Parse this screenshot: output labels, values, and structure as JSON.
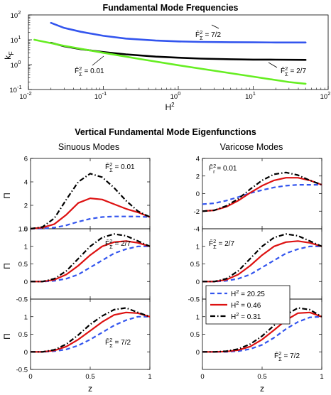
{
  "figure": {
    "top_title": "Fundamental Mode Frequencies",
    "section_title": "Vertical Fundamental Mode Eigenfunctions",
    "left_column_title": "Sinuous Modes",
    "right_column_title": "Varicose Modes"
  },
  "chart_data": [
    {
      "id": "frequencies",
      "type": "line",
      "title": "Fundamental Mode Frequencies",
      "xlabel": "H²",
      "ylabel": "k_F",
      "xscale": "log",
      "yscale": "log",
      "xlim": [
        0.01,
        100
      ],
      "ylim": [
        0.1,
        100
      ],
      "xticks": [
        0.01,
        0.1,
        1,
        10,
        100
      ],
      "xtick_labels": [
        [
          "10",
          "-2"
        ],
        [
          "10",
          "-1"
        ],
        [
          "10",
          "0"
        ],
        [
          "10",
          "1"
        ],
        [
          "10",
          "2"
        ]
      ],
      "yticks": [
        0.1,
        1,
        10,
        100
      ],
      "ytick_labels": [
        [
          "10",
          "-1"
        ],
        [
          "10",
          "0"
        ],
        [
          "10",
          "1"
        ],
        [
          "10",
          "2"
        ]
      ],
      "series": [
        {
          "color": "#3355ee",
          "x": [
            0.02,
            0.03,
            0.05,
            0.1,
            0.2,
            0.5,
            1,
            2,
            5,
            10,
            20,
            50
          ],
          "y": [
            48,
            30,
            21,
            14.5,
            11.2,
            9.3,
            8.6,
            8.2,
            8.0,
            7.9,
            7.8,
            7.8
          ]
        },
        {
          "color": "#000000",
          "x": [
            0.02,
            0.03,
            0.05,
            0.1,
            0.2,
            0.5,
            1,
            2,
            5,
            10,
            20,
            50
          ],
          "y": [
            7.6,
            5.5,
            4.2,
            3.2,
            2.6,
            2.1,
            1.9,
            1.75,
            1.65,
            1.6,
            1.58,
            1.55
          ]
        },
        {
          "color": "#66ee22",
          "x": [
            0.012,
            0.03,
            0.1,
            0.3,
            1,
            3,
            10,
            30,
            50
          ],
          "y": [
            10,
            5.7,
            3.0,
            1.7,
            0.95,
            0.57,
            0.33,
            0.2,
            0.17
          ]
        }
      ],
      "annotations": [
        {
          "base": "F̄",
          "sup": "2",
          "sub": "Σ",
          "value": " = 7/2"
        },
        {
          "base": "F̄",
          "sup": "2",
          "sub": "Σ",
          "value": " = 0.01"
        },
        {
          "base": "F̄",
          "sup": "2",
          "sub": "Σ",
          "value": " = 2/7"
        }
      ]
    },
    {
      "id": "sinuous-1",
      "type": "line",
      "ylabel": "Π",
      "xlim": [
        0,
        1
      ],
      "ylim": [
        0,
        6
      ],
      "yticks": [
        0,
        2,
        4,
        6
      ],
      "ytick_labels": [
        "0",
        "2",
        "4",
        "6"
      ],
      "annotation": {
        "base": "F̄",
        "sup": "2",
        "sub": "Σ",
        "value": " = 0.01"
      },
      "x": [
        0,
        0.1,
        0.2,
        0.3,
        0.4,
        0.5,
        0.6,
        0.7,
        0.8,
        0.9,
        1.0
      ],
      "series": [
        {
          "color": "#3355ee",
          "style": "dash",
          "y": [
            0,
            0.02,
            0.1,
            0.3,
            0.6,
            0.85,
            1.0,
            1.05,
            1.05,
            1.04,
            1.0
          ]
        },
        {
          "color": "#dd1111",
          "style": "solid",
          "y": [
            0,
            0.1,
            0.4,
            1.2,
            2.2,
            2.6,
            2.5,
            2.1,
            1.7,
            1.4,
            1.0
          ]
        },
        {
          "color": "#000000",
          "style": "dashdot",
          "y": [
            0,
            0.15,
            0.9,
            2.5,
            4.0,
            4.7,
            4.4,
            3.5,
            2.4,
            1.5,
            1.0
          ]
        }
      ]
    },
    {
      "id": "sinuous-2",
      "type": "line",
      "ylabel": "Π",
      "xlim": [
        0,
        1
      ],
      "ylim": [
        -0.5,
        1.5
      ],
      "yticks": [
        -0.5,
        0,
        0.5,
        1,
        1.5
      ],
      "ytick_labels": [
        "-0.5",
        "0",
        "0.5",
        "1",
        "1.5"
      ],
      "annotation": {
        "base": "F̄",
        "sup": "2",
        "sub": "Σ",
        "value": " = 2/7"
      },
      "x": [
        0,
        0.1,
        0.2,
        0.3,
        0.4,
        0.5,
        0.6,
        0.7,
        0.8,
        0.9,
        1.0
      ],
      "series": [
        {
          "color": "#3355ee",
          "style": "dash",
          "y": [
            0,
            0.0,
            0.02,
            0.08,
            0.2,
            0.4,
            0.6,
            0.8,
            0.92,
            1.0,
            1.0
          ]
        },
        {
          "color": "#dd1111",
          "style": "solid",
          "y": [
            0,
            0.0,
            0.05,
            0.2,
            0.45,
            0.75,
            1.0,
            1.12,
            1.15,
            1.1,
            1.0
          ]
        },
        {
          "color": "#000000",
          "style": "dashdot",
          "y": [
            0,
            0.0,
            0.08,
            0.3,
            0.65,
            1.0,
            1.25,
            1.35,
            1.3,
            1.15,
            1.0
          ]
        }
      ]
    },
    {
      "id": "sinuous-3",
      "type": "line",
      "ylabel": "Π",
      "xlabel": "z",
      "xlim": [
        0,
        1
      ],
      "ylim": [
        -0.5,
        1.5
      ],
      "yticks": [
        -0.5,
        0,
        0.5,
        1
      ],
      "ytick_labels": [
        "-0.5",
        "0",
        "0.5",
        "1"
      ],
      "xticks": [
        0,
        0.5,
        1
      ],
      "xtick_labels": [
        "0",
        "0.5",
        "1"
      ],
      "annotation": {
        "base": "F̄",
        "sup": "2",
        "sub": "Σ",
        "value": " = 7/2"
      },
      "x": [
        0,
        0.1,
        0.2,
        0.3,
        0.4,
        0.5,
        0.6,
        0.7,
        0.8,
        0.9,
        1.0
      ],
      "series": [
        {
          "color": "#3355ee",
          "style": "dash",
          "y": [
            0,
            0.0,
            0.02,
            0.07,
            0.18,
            0.35,
            0.55,
            0.75,
            0.9,
            1.0,
            1.0
          ]
        },
        {
          "color": "#dd1111",
          "style": "solid",
          "y": [
            0,
            0.0,
            0.04,
            0.15,
            0.35,
            0.6,
            0.85,
            1.05,
            1.12,
            1.1,
            1.0
          ]
        },
        {
          "color": "#000000",
          "style": "dashdot",
          "y": [
            0,
            0.0,
            0.06,
            0.22,
            0.48,
            0.78,
            1.02,
            1.2,
            1.25,
            1.12,
            1.0
          ]
        }
      ]
    },
    {
      "id": "varicose-1",
      "type": "line",
      "xlim": [
        0,
        1
      ],
      "ylim": [
        -4,
        4
      ],
      "yticks": [
        -4,
        -2,
        0,
        2,
        4
      ],
      "ytick_labels": [
        "-4",
        "-2",
        "0",
        "2",
        "4"
      ],
      "annotation": {
        "base": "F̄",
        "sup": "2",
        "sub": "r",
        "value": " = 0.01"
      },
      "x": [
        0,
        0.1,
        0.2,
        0.3,
        0.4,
        0.5,
        0.6,
        0.7,
        0.8,
        0.9,
        1.0
      ],
      "series": [
        {
          "color": "#3355ee",
          "style": "dash",
          "y": [
            -1.2,
            -1.1,
            -0.8,
            -0.4,
            0.05,
            0.4,
            0.7,
            0.9,
            1.0,
            1.0,
            1.0
          ]
        },
        {
          "color": "#dd1111",
          "style": "solid",
          "y": [
            -2.0,
            -1.9,
            -1.5,
            -0.8,
            0.1,
            0.9,
            1.5,
            1.8,
            1.8,
            1.5,
            1.0
          ]
        },
        {
          "color": "#000000",
          "style": "dashdot",
          "y": [
            -2.0,
            -1.9,
            -1.4,
            -0.6,
            0.5,
            1.5,
            2.2,
            2.4,
            2.1,
            1.5,
            1.0
          ]
        }
      ]
    },
    {
      "id": "varicose-2",
      "type": "line",
      "xlim": [
        0,
        1
      ],
      "ylim": [
        -0.5,
        1.5
      ],
      "yticks": [
        -0.5,
        0,
        0.5,
        1
      ],
      "ytick_labels": [
        "-0.5",
        "0",
        "0.5",
        "1"
      ],
      "annotation": {
        "base": "F̄",
        "sup": "2",
        "sub": "Σ",
        "value": " = 2/7"
      },
      "x": [
        0,
        0.1,
        0.2,
        0.3,
        0.4,
        0.5,
        0.6,
        0.7,
        0.8,
        0.9,
        1.0
      ],
      "series": [
        {
          "color": "#3355ee",
          "style": "dash",
          "y": [
            0,
            0.0,
            0.02,
            0.08,
            0.2,
            0.4,
            0.6,
            0.8,
            0.92,
            1.0,
            1.0
          ]
        },
        {
          "color": "#dd1111",
          "style": "solid",
          "y": [
            0,
            0.0,
            0.05,
            0.2,
            0.45,
            0.75,
            1.0,
            1.12,
            1.15,
            1.1,
            1.0
          ]
        },
        {
          "color": "#000000",
          "style": "dashdot",
          "y": [
            0,
            0.0,
            0.08,
            0.3,
            0.65,
            1.0,
            1.25,
            1.35,
            1.3,
            1.15,
            1.0
          ]
        }
      ]
    },
    {
      "id": "varicose-3",
      "type": "line",
      "xlabel": "z",
      "xlim": [
        0,
        1
      ],
      "ylim": [
        -0.5,
        1.5
      ],
      "yticks": [
        0,
        0.5,
        1
      ],
      "ytick_labels": [
        "0",
        "0.5",
        "1"
      ],
      "xticks": [
        0,
        0.5,
        1
      ],
      "xtick_labels": [
        "0",
        "0.5",
        "1"
      ],
      "annotation": {
        "base": "F̄",
        "sup": "2",
        "sub": "Σ",
        "value": " = 7/2"
      },
      "x": [
        0,
        0.1,
        0.2,
        0.3,
        0.4,
        0.5,
        0.6,
        0.7,
        0.8,
        0.9,
        1.0
      ],
      "series": [
        {
          "color": "#3355ee",
          "style": "dash",
          "y": [
            0,
            0.0,
            0.0,
            0.02,
            0.08,
            0.2,
            0.4,
            0.65,
            0.85,
            0.98,
            1.0
          ]
        },
        {
          "color": "#dd1111",
          "style": "solid",
          "y": [
            0,
            0.0,
            0.01,
            0.05,
            0.15,
            0.35,
            0.62,
            0.9,
            1.1,
            1.12,
            1.0
          ]
        },
        {
          "color": "#000000",
          "style": "dashdot",
          "y": [
            0,
            0.0,
            0.02,
            0.08,
            0.22,
            0.45,
            0.75,
            1.05,
            1.25,
            1.2,
            1.0
          ]
        }
      ]
    }
  ],
  "legend": {
    "placement": "varicose-2 lower-left",
    "entries": [
      {
        "color": "#3355ee",
        "style": "dash",
        "base": "H",
        "sup": "2",
        "value": " = 20.25"
      },
      {
        "color": "#dd1111",
        "style": "solid",
        "base": "H",
        "sup": "2",
        "value": " = 0.46"
      },
      {
        "color": "#000000",
        "style": "dashdot",
        "base": "H",
        "sup": "2",
        "value": " = 0.31"
      }
    ]
  }
}
